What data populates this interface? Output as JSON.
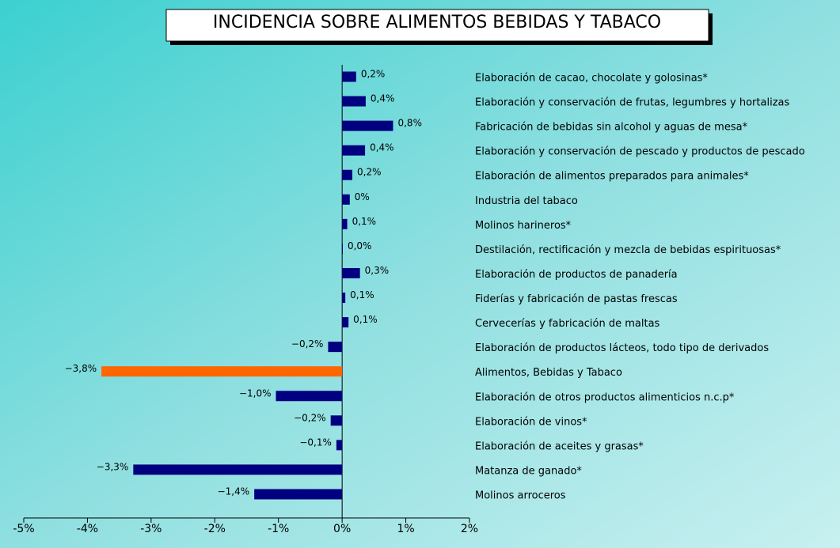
{
  "chart_data": {
    "type": "bar",
    "orientation": "horizontal",
    "title": "INCIDENCIA SOBRE ALIMENTOS BEBIDAS Y TABACO",
    "categories": [
      "Elaboración de cacao, chocolate y golosinas*",
      "Elaboración y conservación de frutas, legumbres y hortalizas",
      "Fabricación de bebidas sin alcohol y aguas de mesa*",
      "Elaboración y conservación de pescado y productos de pescado",
      "Elaboración de alimentos preparados para animales*",
      "Industria del tabaco",
      "Molinos harineros*",
      "Destilación, rectificación y mezcla de bebidas espirituosas*",
      "Elaboración de productos de panadería",
      "Fiderías y fabricación de pastas frescas",
      "Cervecerías y fabricación de maltas",
      "Elaboración de productos lácteos, todo tipo de derivados",
      "Alimentos, Bebidas y Tabaco",
      "Elaboración de otros productos alimenticios n.c.p*",
      "Elaboración de vinos*",
      "Elaboración de aceites y grasas*",
      "Matanza de ganado*",
      "Molinos arroceros"
    ],
    "values": [
      0.22,
      0.37,
      0.8,
      0.36,
      0.16,
      0.12,
      0.08,
      0.01,
      0.28,
      0.05,
      0.1,
      -0.22,
      -3.78,
      -1.04,
      -0.18,
      -0.09,
      -3.28,
      -1.38
    ],
    "value_labels": [
      "0,2%",
      "0,4%",
      "0,8%",
      "0,4%",
      "0,2%",
      "0%",
      "0,1%",
      "0,0%",
      "0,3%",
      "0,1%",
      "0,1%",
      "−0,2%",
      "−3,8%",
      "−1,0%",
      "−0,2%",
      "−0,1%",
      "−3,3%",
      "−1,4%"
    ],
    "colors": [
      "#000080",
      "#000080",
      "#000080",
      "#000080",
      "#000080",
      "#000080",
      "#000080",
      "#000080",
      "#000080",
      "#000080",
      "#000080",
      "#000080",
      "#ff6600",
      "#000080",
      "#000080",
      "#000080",
      "#000080",
      "#000080"
    ],
    "xlim": [
      -5,
      2
    ],
    "xticks": [
      {
        "value": -5,
        "label": "-5%"
      },
      {
        "value": -4,
        "label": "-4%"
      },
      {
        "value": -3,
        "label": "-3%"
      },
      {
        "value": -2,
        "label": "-2%"
      },
      {
        "value": -1,
        "label": "-1%"
      },
      {
        "value": 0,
        "label": "0%"
      },
      {
        "value": 1,
        "label": "1%"
      },
      {
        "value": 2,
        "label": "2%"
      }
    ]
  }
}
